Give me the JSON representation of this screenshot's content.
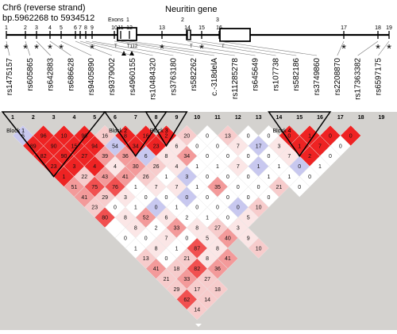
{
  "header": {
    "title_line1": "Chr6 (reverse strand)",
    "title_line2": "bp.5962268 to 5934512",
    "gene_label": "Neuritin gene",
    "exons_label": "Exons",
    "exon_numbers": [
      "1",
      "2",
      "3"
    ],
    "t_labels": [
      "T",
      "T112",
      "T",
      "T"
    ]
  },
  "snps": [
    {
      "pos": "1",
      "id": "rs1475157"
    },
    {
      "pos": "2",
      "id": "rs605865"
    },
    {
      "pos": "3",
      "id": "rs642883"
    },
    {
      "pos": "4",
      "id": "rs686628"
    },
    {
      "pos": "5",
      "id": "rs9405890"
    },
    {
      "pos": "6",
      "id": "rs9379002"
    },
    {
      "pos": "7",
      "id": "rs4960155"
    },
    {
      "pos": "8",
      "id": "rs10484320"
    },
    {
      "pos": "9",
      "id": "rs3763180"
    },
    {
      "pos": "10",
      "id": "rs582262"
    },
    {
      "pos": "11",
      "id": "c.-318delA"
    },
    {
      "pos": "12",
      "id": "rs11285278"
    },
    {
      "pos": "13",
      "id": "rs645649"
    },
    {
      "pos": "14",
      "id": "rs107738"
    },
    {
      "pos": "15",
      "id": "rs582186"
    },
    {
      "pos": "16",
      "id": "rs3749860"
    },
    {
      "pos": "17",
      "id": "rs2208870"
    },
    {
      "pos": "18",
      "id": "rs17363382"
    },
    {
      "pos": "19",
      "id": "rs6597175"
    }
  ],
  "map_numbers": [
    "1",
    "2",
    "3",
    "4",
    "5",
    "6",
    "7",
    "8",
    "9",
    "10",
    "11",
    "12",
    "13",
    "14",
    "15",
    "16",
    "17",
    "18",
    "19"
  ],
  "blocks": [
    "Block 1",
    "Block 2",
    "Block 3",
    "Block 4"
  ],
  "ld_rows": [
    [
      "6",
      "89",
      "82",
      "23",
      "1",
      "51",
      "41",
      "23",
      "80",
      "",
      "0",
      "1",
      "13",
      "41",
      "21",
      "29",
      "62",
      "14"
    ],
    [
      "96",
      "90",
      "90",
      "3",
      "22",
      "75",
      "29",
      "0",
      "8",
      "8",
      "0",
      "8",
      "0",
      "18",
      "33",
      "17",
      "14"
    ],
    [
      "10",
      "15",
      "27",
      "4",
      "43",
      "76",
      "3",
      "1",
      "52",
      "2",
      "7",
      "1",
      "21",
      "82",
      "27",
      "18"
    ],
    [
      "90",
      "94",
      "39",
      "4",
      "41",
      "1",
      "0",
      "0",
      "6",
      "33",
      "0",
      "87",
      "8",
      "36"
    ],
    [
      "16",
      "54",
      "36",
      "30",
      "26",
      "7",
      "0",
      "1",
      "2",
      "8",
      "5",
      "8",
      "41"
    ],
    [
      "8",
      "34",
      "6",
      "26",
      "1",
      "7",
      "0",
      "0",
      "1",
      "27",
      "40"
    ],
    [
      "16",
      "23",
      "8",
      "4",
      "3",
      "1",
      "0",
      "0",
      "0",
      "3",
      "9",
      "10"
    ],
    [
      "2",
      "6",
      "34",
      "1",
      "0",
      "35",
      "0",
      "0",
      "5"
    ],
    [
      "20",
      "0",
      "0",
      "1",
      "0",
      "0",
      "0",
      "10"
    ],
    [
      "0",
      "0",
      "0",
      "7",
      "0",
      "0",
      "0"
    ],
    [
      "13",
      "7",
      "0",
      "1",
      "1",
      "21"
    ],
    [
      "0",
      "17",
      "0",
      "1",
      "1",
      "0"
    ],
    [
      "0",
      "3",
      "7",
      "0",
      "0"
    ],
    [
      "0",
      "1",
      "2",
      "1"
    ],
    [
      "1",
      "7",
      "0"
    ],
    [
      "0",
      "0"
    ],
    [
      "0"
    ]
  ]
}
